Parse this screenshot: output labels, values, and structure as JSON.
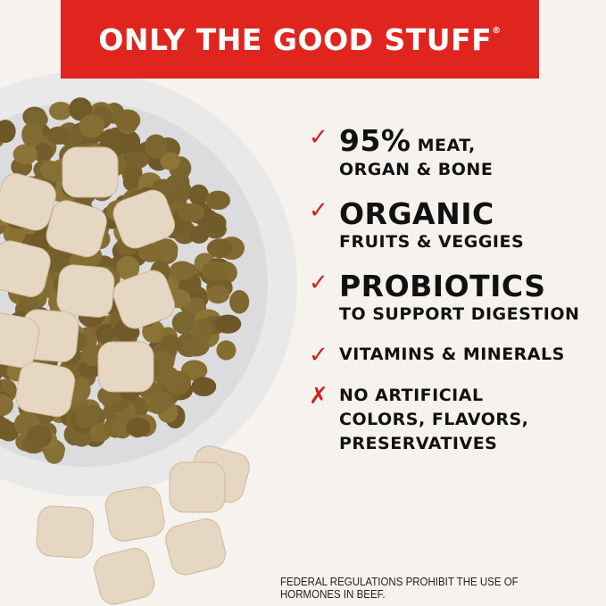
{
  "banner": {
    "title": "ONLY THE GOOD STUFF",
    "trademark": "®",
    "color": "#e0251f"
  },
  "features": [
    {
      "icon": "check-icon",
      "headline": "95%",
      "headline_rest": " MEAT,",
      "subline": "ORGAN & BONE"
    },
    {
      "icon": "check-icon",
      "headline": "ORGANIC",
      "subline": "FRUITS & VEGGIES"
    },
    {
      "icon": "check-icon",
      "headline": "PROBIOTICS",
      "subline": "TO SUPPORT DIGESTION"
    },
    {
      "icon": "check-icon",
      "subline": "VITAMINS & MINERALS"
    },
    {
      "icon": "x-icon",
      "lines": [
        "NO ARTIFICIAL",
        "COLORS, FLAVORS,",
        "PRESERVATIVES"
      ]
    }
  ],
  "disclaimer": "FEDERAL REGULATIONS PROHIBIT THE USE OF HORMONES IN BEEF.",
  "colors": {
    "accent": "#d4201c",
    "background": "#f6f3ef",
    "kibble": "#7a6330",
    "freeze_dried": "#e6d7c2"
  }
}
